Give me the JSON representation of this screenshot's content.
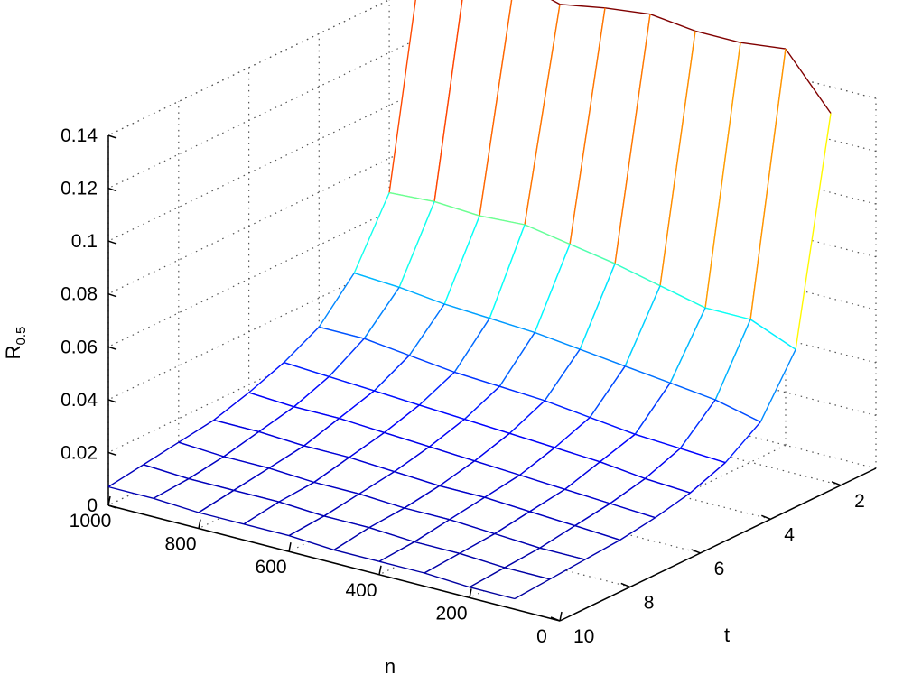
{
  "chart_data": {
    "type": "surface",
    "title": "",
    "xlabel": "n",
    "ylabel": "t",
    "zlabel": "R",
    "zlabel_subscript": "0.5",
    "x_ticks": [
      "0",
      "200",
      "400",
      "600",
      "800",
      "1000"
    ],
    "y_ticks": [
      "2",
      "4",
      "6",
      "8",
      "10"
    ],
    "z_ticks": [
      "0",
      "0.02",
      "0.04",
      "0.06",
      "0.08",
      "0.1",
      "0.12",
      "0.14"
    ],
    "xlim": [
      0,
      1000
    ],
    "ylim": [
      1,
      10
    ],
    "zlim": [
      0,
      0.14
    ],
    "grid": true,
    "colormap": "jet",
    "n_values": [
      100,
      200,
      300,
      400,
      500,
      600,
      700,
      800,
      900,
      1000
    ],
    "t_values": [
      1,
      2,
      3,
      4,
      5,
      6,
      7,
      8,
      9,
      10
    ],
    "z_matrix": [
      [
        0.13,
        0.15,
        0.148,
        0.148,
        0.15,
        0.148,
        0.145,
        0.15,
        0.158,
        0.158
      ],
      [
        0.047,
        0.054,
        0.054,
        0.058,
        0.062,
        0.065,
        0.068,
        0.067,
        0.068,
        0.067
      ],
      [
        0.026,
        0.03,
        0.032,
        0.034,
        0.036,
        0.038,
        0.039,
        0.04,
        0.042,
        0.043
      ],
      [
        0.017,
        0.018,
        0.019,
        0.021,
        0.023,
        0.024,
        0.025,
        0.027,
        0.029,
        0.029
      ],
      [
        0.012,
        0.013,
        0.015,
        0.016,
        0.017,
        0.018,
        0.019,
        0.02,
        0.021,
        0.022
      ],
      [
        0.009,
        0.01,
        0.011,
        0.012,
        0.013,
        0.014,
        0.015,
        0.016,
        0.016,
        0.017
      ],
      [
        0.007,
        0.008,
        0.009,
        0.01,
        0.01,
        0.011,
        0.012,
        0.012,
        0.013,
        0.013
      ],
      [
        0.006,
        0.006,
        0.007,
        0.008,
        0.008,
        0.009,
        0.009,
        0.01,
        0.01,
        0.011
      ],
      [
        0.005,
        0.005,
        0.006,
        0.006,
        0.007,
        0.007,
        0.008,
        0.008,
        0.008,
        0.009
      ],
      [
        0.004,
        0.004,
        0.005,
        0.005,
        0.005,
        0.006,
        0.006,
        0.006,
        0.007,
        0.007
      ]
    ]
  }
}
